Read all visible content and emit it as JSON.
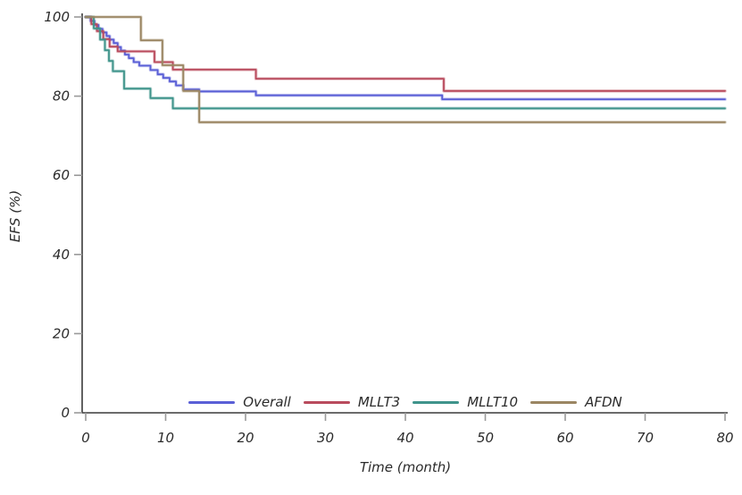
{
  "figure": {
    "background": "#ffffff",
    "spine_color": "#3a3a3a",
    "tick_color": "#9a9a9a",
    "text_color": "#2b2b2b"
  },
  "chart_data": {
    "type": "line",
    "subtype": "step-post-kaplan-meier",
    "title": "",
    "xlabel": "Time (month)",
    "ylabel": "EFS (%)",
    "xlim": [
      0,
      80
    ],
    "ylim": [
      0,
      100
    ],
    "xticks": [
      0,
      10,
      20,
      30,
      40,
      50,
      60,
      70,
      80
    ],
    "yticks": [
      0,
      20,
      40,
      60,
      80,
      100
    ],
    "grid": false,
    "legend_position": "bottom-center-inside",
    "series": [
      {
        "name": "Overall",
        "color": "#5a5fd6",
        "points": [
          [
            0,
            100
          ],
          [
            0.6,
            99
          ],
          [
            1.1,
            98
          ],
          [
            1.6,
            97
          ],
          [
            2.1,
            96.1
          ],
          [
            2.6,
            95.2
          ],
          [
            3,
            94.3
          ],
          [
            3.5,
            93.4
          ],
          [
            4,
            92.4
          ],
          [
            4.4,
            91.5
          ],
          [
            4.9,
            90.5
          ],
          [
            5.4,
            89.6
          ],
          [
            6,
            88.6
          ],
          [
            6.7,
            87.7
          ],
          [
            8.1,
            86.6
          ],
          [
            9,
            85.5
          ],
          [
            9.7,
            84.6
          ],
          [
            10.5,
            83.7
          ],
          [
            11.3,
            82.7
          ],
          [
            12.2,
            81.7
          ],
          [
            14.2,
            81.2
          ],
          [
            21.3,
            80.2
          ],
          [
            44.6,
            79.2
          ],
          [
            80,
            79.2
          ]
        ]
      },
      {
        "name": "MLLT3",
        "color": "#b94b5d",
        "points": [
          [
            0,
            100
          ],
          [
            0.7,
            98.2
          ],
          [
            1.4,
            96.4
          ],
          [
            2.2,
            94.4
          ],
          [
            3,
            92.5
          ],
          [
            4,
            91.3
          ],
          [
            8.6,
            88.6
          ],
          [
            10.9,
            86.7
          ],
          [
            21.3,
            84.4
          ],
          [
            44.8,
            81.3
          ],
          [
            80,
            81.3
          ]
        ]
      },
      {
        "name": "MLLT10",
        "color": "#3f948b",
        "points": [
          [
            0,
            100
          ],
          [
            1,
            97.1
          ],
          [
            1.8,
            94.3
          ],
          [
            2.4,
            91.6
          ],
          [
            2.9,
            88.9
          ],
          [
            3.4,
            86.3
          ],
          [
            4.8,
            81.9
          ],
          [
            8.1,
            79.5
          ],
          [
            10.9,
            76.9
          ],
          [
            80,
            76.9
          ]
        ]
      },
      {
        "name": "AFDN",
        "color": "#9b8663",
        "points": [
          [
            0,
            100
          ],
          [
            6.9,
            94.1
          ],
          [
            9.6,
            87.8
          ],
          [
            12.2,
            81.3
          ],
          [
            14.2,
            73.4
          ],
          [
            80,
            73.4
          ]
        ]
      }
    ]
  }
}
